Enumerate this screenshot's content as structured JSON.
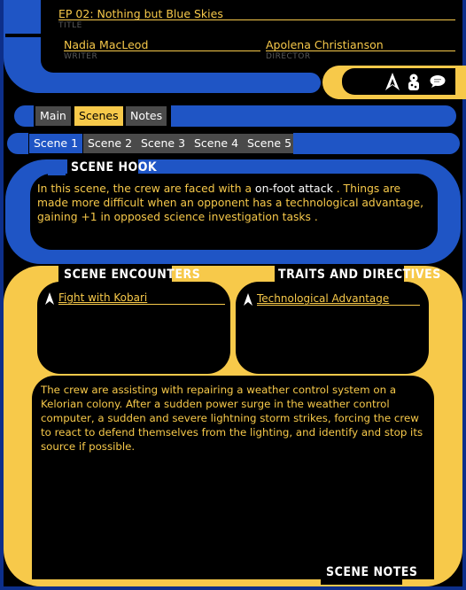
{
  "header": {
    "title_value": "EP 02: Nothing but Blue Skies",
    "title_caption": "TITLE",
    "writer_value": "Nadia MacLeod",
    "writer_caption": "WRITER",
    "director_value": "Apolena Christianson",
    "director_caption": "DIRECTOR"
  },
  "icons": [
    "starfleet-delta-icon",
    "dice-icon",
    "chat-bubble-icon"
  ],
  "main_tabs": [
    {
      "label": "Main",
      "active": false
    },
    {
      "label": "Scenes",
      "active": true
    },
    {
      "label": "Notes",
      "active": false
    }
  ],
  "scene_tabs": [
    {
      "label": "Scene 1",
      "active": true
    },
    {
      "label": "Scene 2",
      "active": false
    },
    {
      "label": "Scene 3",
      "active": false
    },
    {
      "label": "Scene 4",
      "active": false
    },
    {
      "label": "Scene 5",
      "active": false
    }
  ],
  "scene_hook": {
    "title": "SCENE HOOK",
    "text_before": "In this scene, the crew are faced with a",
    "highlight": "on-foot attack",
    "text_after": ". Things are made more difficult when an opponent has a technological advantage, gaining +1 in opposed science investigation tasks ."
  },
  "encounters": {
    "title": "SCENE ENCOUNTERS",
    "items": [
      "Fight with Kobari"
    ]
  },
  "traits": {
    "title": "TRAITS AND DIRECTIVES",
    "items": [
      "Technological Advantage"
    ]
  },
  "notes": {
    "title": "SCENE NOTES",
    "text": "The crew are assisting with repairing a weather control system on a Kelorian colony. After a sudden power surge in the weather control computer, a sudden and severe lightning storm strikes, forcing the crew to react to defend themselves from the lighting, and identify and stop its source if possible."
  },
  "colors": {
    "lcars_blue": "#1f55c5",
    "lcars_yellow": "#f7c94a",
    "tab_gray": "#4a4a4a",
    "background": "#000000"
  }
}
